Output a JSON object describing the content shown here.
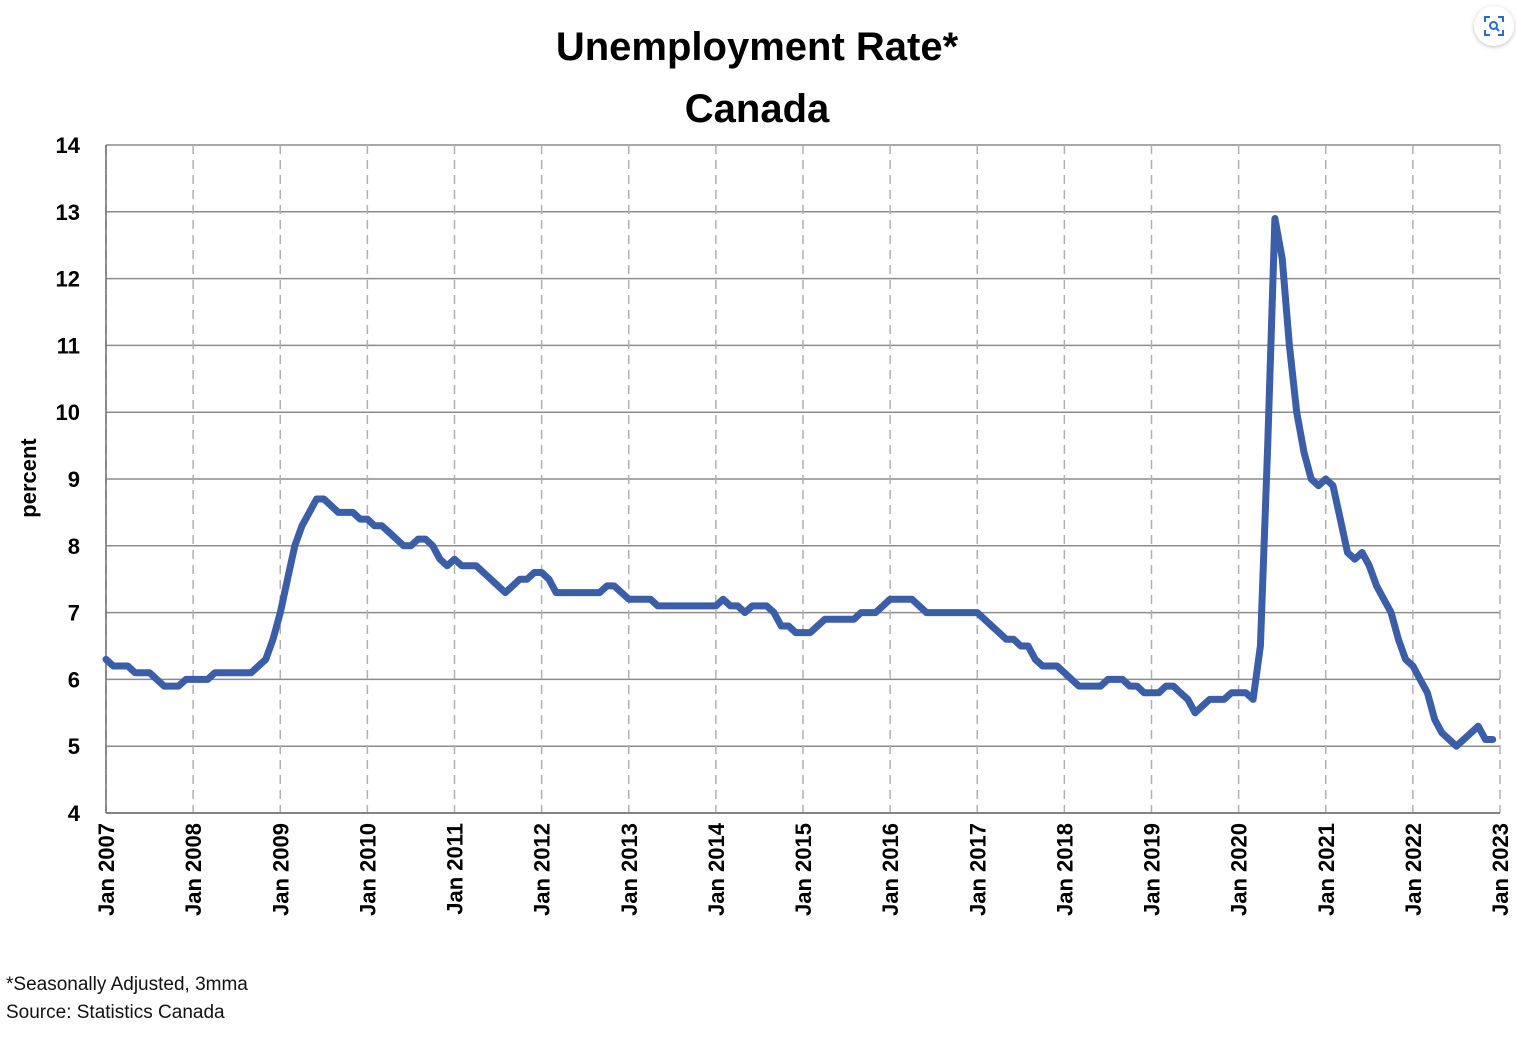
{
  "corner_button": {
    "icon": "visual-search-icon"
  },
  "chart_data": {
    "type": "line",
    "title": "Unemployment Rate*",
    "subtitle": "Canada",
    "ylabel": "percent",
    "xlabel": "",
    "ylim": [
      4,
      14
    ],
    "y_ticks": [
      "4",
      "5",
      "6",
      "7",
      "8",
      "9",
      "10",
      "11",
      "12",
      "13",
      "14"
    ],
    "x_tick_labels": [
      "Jan 2007",
      "Jan 2008",
      "Jan 2009",
      "Jan 2010",
      "Jan 2011",
      "Jan 2012",
      "Jan 2013",
      "Jan 2014",
      "Jan 2015",
      "Jan 2016",
      "Jan 2017",
      "Jan 2018",
      "Jan 2019",
      "Jan 2020",
      "Jan 2021",
      "Jan 2022",
      "Jan 2023"
    ],
    "x_start": "2007-01",
    "grid": true,
    "line_color": "#3a5ea8",
    "series": [
      {
        "values": [
          6.3,
          6.2,
          6.2,
          6.2,
          6.1,
          6.1,
          6.1,
          6.0,
          5.9,
          5.9,
          5.9,
          6.0,
          6.0,
          6.0,
          6.0,
          6.1,
          6.1,
          6.1,
          6.1,
          6.1,
          6.1,
          6.2,
          6.3,
          6.6,
          7.0,
          7.5,
          8.0,
          8.3,
          8.5,
          8.7,
          8.7,
          8.6,
          8.5,
          8.5,
          8.5,
          8.4,
          8.4,
          8.3,
          8.3,
          8.2,
          8.1,
          8.0,
          8.0,
          8.1,
          8.1,
          8.0,
          7.8,
          7.7,
          7.8,
          7.7,
          7.7,
          7.7,
          7.6,
          7.5,
          7.4,
          7.3,
          7.4,
          7.5,
          7.5,
          7.6,
          7.6,
          7.5,
          7.3,
          7.3,
          7.3,
          7.3,
          7.3,
          7.3,
          7.3,
          7.4,
          7.4,
          7.3,
          7.2,
          7.2,
          7.2,
          7.2,
          7.1,
          7.1,
          7.1,
          7.1,
          7.1,
          7.1,
          7.1,
          7.1,
          7.1,
          7.2,
          7.1,
          7.1,
          7.0,
          7.1,
          7.1,
          7.1,
          7.0,
          6.8,
          6.8,
          6.7,
          6.7,
          6.7,
          6.8,
          6.9,
          6.9,
          6.9,
          6.9,
          6.9,
          7.0,
          7.0,
          7.0,
          7.1,
          7.2,
          7.2,
          7.2,
          7.2,
          7.1,
          7.0,
          7.0,
          7.0,
          7.0,
          7.0,
          7.0,
          7.0,
          7.0,
          6.9,
          6.8,
          6.7,
          6.6,
          6.6,
          6.5,
          6.5,
          6.3,
          6.2,
          6.2,
          6.2,
          6.1,
          6.0,
          5.9,
          5.9,
          5.9,
          5.9,
          6.0,
          6.0,
          6.0,
          5.9,
          5.9,
          5.8,
          5.8,
          5.8,
          5.9,
          5.9,
          5.8,
          5.7,
          5.5,
          5.6,
          5.7,
          5.7,
          5.7,
          5.8,
          5.8,
          5.8,
          5.7,
          6.5,
          9.5,
          12.9,
          12.3,
          11.0,
          10.0,
          9.4,
          9.0,
          8.9,
          9.0,
          8.9,
          8.4,
          7.9,
          7.8,
          7.9,
          7.7,
          7.4,
          7.2,
          7.0,
          6.6,
          6.3,
          6.2,
          6.0,
          5.8,
          5.4,
          5.2,
          5.1,
          5.0,
          5.1,
          5.2,
          5.3,
          5.1,
          5.1
        ]
      }
    ]
  },
  "notes": {
    "line1": "*Seasonally Adjusted, 3mma",
    "line2": "Source: Statistics Canada"
  }
}
